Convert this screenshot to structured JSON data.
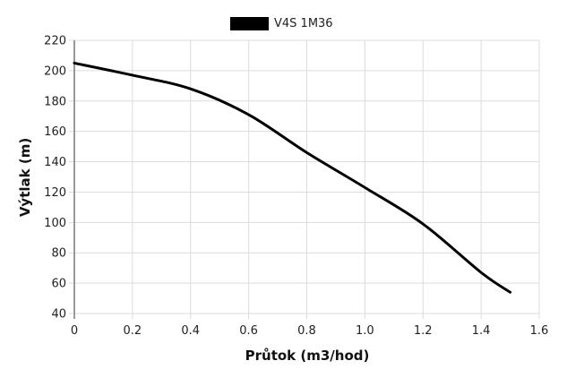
{
  "chart_data": {
    "type": "line",
    "title": "",
    "xlabel": "Průtok (m3/hod)",
    "ylabel": "Výtlak (m)",
    "xlim": [
      0,
      1.6
    ],
    "ylim": [
      40,
      220
    ],
    "x_ticks": [
      "0",
      "0.2",
      "0.4",
      "0.6",
      "0.8",
      "1.0",
      "1.2",
      "1.4",
      "1.6"
    ],
    "y_ticks": [
      "40",
      "60",
      "80",
      "100",
      "120",
      "140",
      "160",
      "180",
      "200",
      "220"
    ],
    "grid": true,
    "legend_position": "top",
    "series": [
      {
        "name": "V4S 1M36",
        "color": "#000000",
        "x": [
          0,
          0.2,
          0.4,
          0.6,
          0.8,
          1.0,
          1.2,
          1.4,
          1.5
        ],
        "values": [
          205,
          197,
          188,
          171,
          146,
          123,
          99,
          67,
          54
        ]
      }
    ]
  },
  "legend": {
    "label": "V4S 1M36"
  },
  "axes": {
    "xlabel": "Průtok (m3/hod)",
    "ylabel": "Výtlak (m)"
  }
}
